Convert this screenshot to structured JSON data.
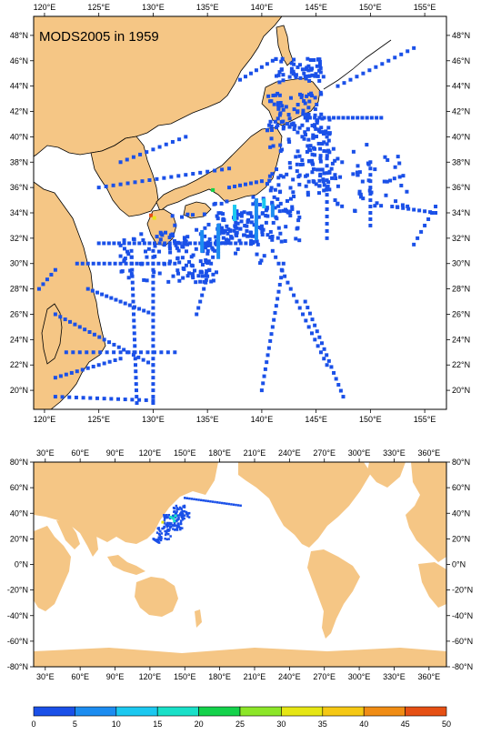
{
  "figure": {
    "title": "MODS2005 in 1959",
    "colors": {
      "land": "#f5c685",
      "ocean": "#ffffff",
      "frame": "#000000"
    }
  },
  "regional_map": {
    "lon_range": [
      119,
      157
    ],
    "lat_range": [
      18.5,
      49.5
    ],
    "lon_ticks": [
      "120°E",
      "125°E",
      "130°E",
      "135°E",
      "140°E",
      "145°E",
      "150°E",
      "155°E"
    ],
    "lat_ticks": [
      "20°N",
      "22°N",
      "24°N",
      "26°N",
      "28°N",
      "30°N",
      "32°N",
      "34°N",
      "36°N",
      "38°N",
      "40°N",
      "42°N",
      "44°N",
      "46°N",
      "48°N"
    ]
  },
  "global_map": {
    "lon_range": [
      20,
      375
    ],
    "lat_range": [
      -80,
      80
    ],
    "lon_ticks": [
      "30°E",
      "60°E",
      "90°E",
      "120°E",
      "150°E",
      "180°E",
      "210°E",
      "240°E",
      "270°E",
      "300°E",
      "330°E",
      "360°E"
    ],
    "lat_ticks": [
      "80°N",
      "60°N",
      "40°N",
      "20°N",
      "0°N",
      "-20°N",
      "-40°N",
      "-60°N",
      "-80°N"
    ]
  },
  "colorbar": {
    "labels": [
      "0",
      "5",
      "10",
      "15",
      "20",
      "25",
      "30",
      "35",
      "40",
      "45",
      "50"
    ],
    "colors": [
      "#1a50e8",
      "#1c8cf0",
      "#1cc8f0",
      "#19e0c8",
      "#14d24b",
      "#8ce628",
      "#e6e614",
      "#f5c814",
      "#f08c14",
      "#e65014"
    ]
  }
}
